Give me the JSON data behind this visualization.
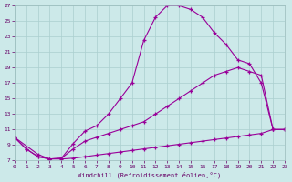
{
  "xlabel": "Windchill (Refroidissement éolien,°C)",
  "background_color": "#cce9e9",
  "grid_color": "#aacfcf",
  "line_color": "#990099",
  "xlim": [
    0,
    23
  ],
  "ylim": [
    7,
    27
  ],
  "xticks": [
    0,
    1,
    2,
    3,
    4,
    5,
    6,
    7,
    8,
    9,
    10,
    11,
    12,
    13,
    14,
    15,
    16,
    17,
    18,
    19,
    20,
    21,
    22,
    23
  ],
  "yticks": [
    7,
    9,
    11,
    13,
    15,
    17,
    19,
    21,
    23,
    25,
    27
  ],
  "curve_top_x": [
    0,
    1,
    2,
    3,
    4,
    5,
    6,
    7,
    8,
    9,
    10,
    11,
    12,
    13,
    14,
    15,
    16,
    17,
    18,
    19,
    20,
    21,
    22,
    23
  ],
  "curve_top_y": [
    10.0,
    8.5,
    7.5,
    7.2,
    7.3,
    9.2,
    10.8,
    11.5,
    13.0,
    15.0,
    17.0,
    22.5,
    25.5,
    27.0,
    27.0,
    26.5,
    25.5,
    23.5,
    22.0,
    20.0,
    19.5,
    17.0,
    11.0,
    11.0
  ],
  "curve_mid_x": [
    0,
    1,
    2,
    3,
    4,
    5,
    6,
    7,
    8,
    9,
    10,
    11,
    12,
    13,
    14,
    15,
    16,
    17,
    18,
    19,
    20,
    21,
    22,
    23
  ],
  "curve_mid_y": [
    10.0,
    8.5,
    7.5,
    7.2,
    7.3,
    8.5,
    9.5,
    10.0,
    10.5,
    11.0,
    11.5,
    12.0,
    13.0,
    14.0,
    15.0,
    16.0,
    17.0,
    18.0,
    18.5,
    19.0,
    18.5,
    18.0,
    11.0,
    11.0
  ],
  "curve_bot_x": [
    0,
    2,
    3,
    4,
    5,
    6,
    7,
    8,
    9,
    10,
    11,
    12,
    13,
    14,
    15,
    16,
    17,
    18,
    19,
    20,
    21,
    22,
    23
  ],
  "curve_bot_y": [
    10.0,
    7.8,
    7.2,
    7.2,
    7.3,
    7.5,
    7.7,
    7.9,
    8.1,
    8.3,
    8.5,
    8.7,
    8.9,
    9.1,
    9.3,
    9.5,
    9.7,
    9.9,
    10.1,
    10.3,
    10.5,
    11.0,
    11.0
  ]
}
